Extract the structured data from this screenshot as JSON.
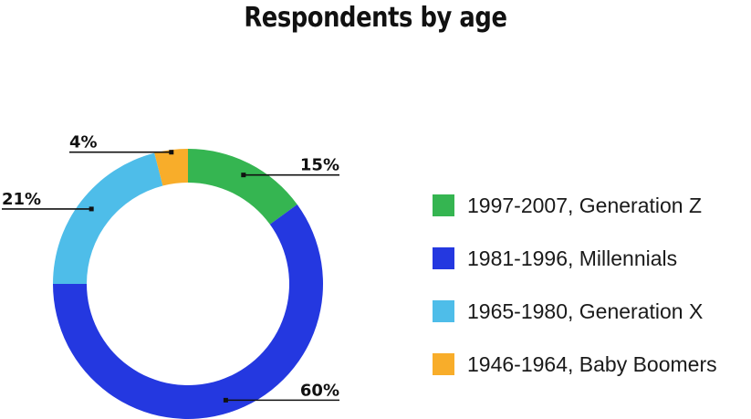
{
  "chart_data": {
    "type": "pie",
    "title": "Respondents by age",
    "categories": [
      "1997-2007, Generation Z",
      "1981-1996, Millennials",
      "1965-1980, Generation X",
      "1946-1964, Baby Boomers"
    ],
    "values": [
      15,
      60,
      21,
      4
    ],
    "data_labels": [
      "15%",
      "60%",
      "21%",
      "4%"
    ],
    "colors": [
      "#35b551",
      "#2438e0",
      "#4ebde9",
      "#f8ad2a"
    ],
    "style": "donut",
    "legend_position": "right"
  }
}
